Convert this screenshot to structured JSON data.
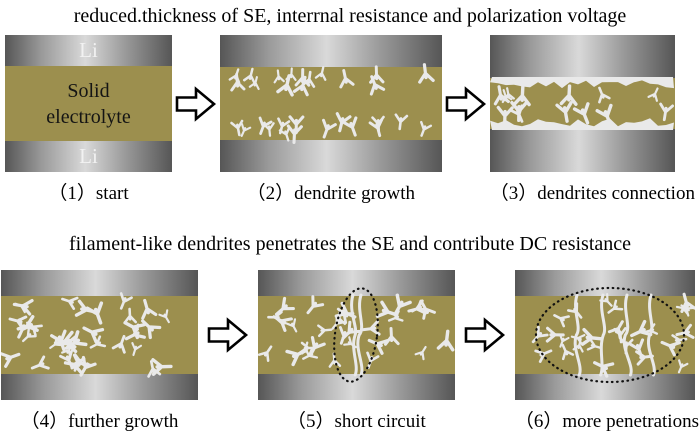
{
  "colors": {
    "electrolyte": "#9c8f4e",
    "dendrite": "#e9e9e9",
    "electrode_dark": "#565656",
    "electrode_mid": "#9a9a9a",
    "electrode_light": "#d9d9d9",
    "ellipse": "#111111"
  },
  "captions": {
    "top": "reduced.thickness of SE, interrnal resistance and polarization voltage",
    "middle": "filament-like dendrites penetrates the SE and contribute DC resistance"
  },
  "panel_start": {
    "top_electrode": "Li",
    "electrolyte": "Solid electrolyte",
    "bottom_electrode": "Li"
  },
  "step_labels": {
    "s1": "（1）start",
    "s2": "（2）dendrite growth",
    "s3": "（3）dendrites connection",
    "s4": "（4）further growth",
    "s5": "（5）short circuit",
    "s6": "（6）more penetrations"
  }
}
